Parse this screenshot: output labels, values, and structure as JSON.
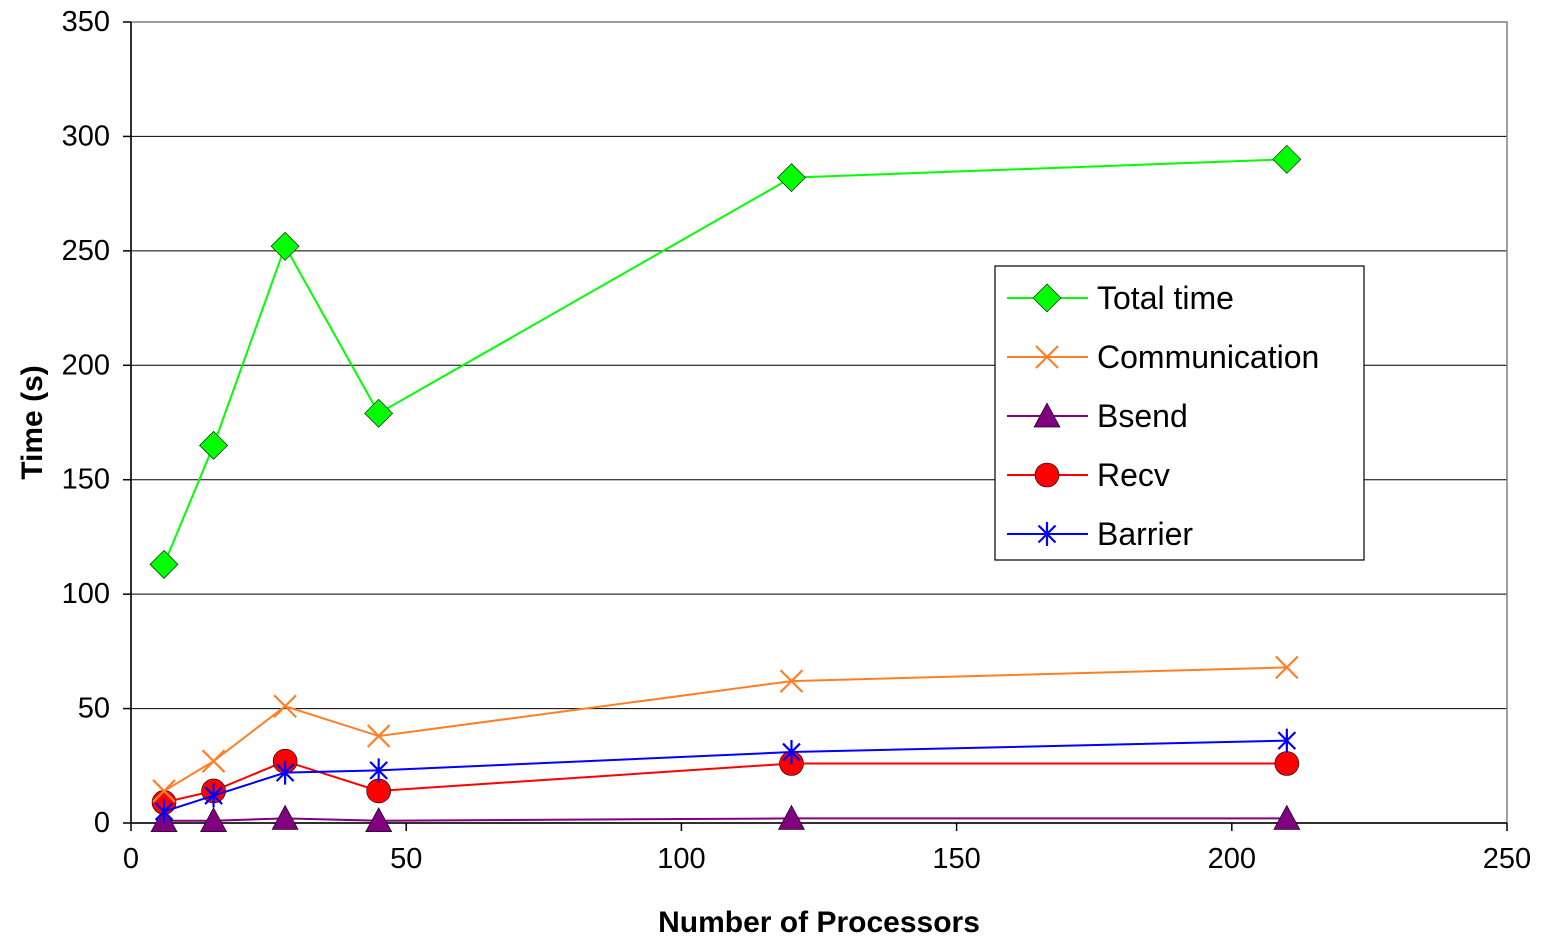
{
  "chart_data": {
    "type": "line",
    "title": "",
    "xlabel": "Number of Processors",
    "ylabel": "Time (s)",
    "xlim": [
      0,
      250
    ],
    "ylim": [
      0,
      350
    ],
    "x_ticks": [
      0,
      50,
      100,
      150,
      200,
      250
    ],
    "y_ticks": [
      0,
      50,
      100,
      150,
      200,
      250,
      300,
      350
    ],
    "x_tick_labels": [
      "0",
      "50",
      "100",
      "150",
      "200",
      "250"
    ],
    "y_tick_labels": [
      "0",
      "50",
      "100",
      "150",
      "200",
      "250",
      "300",
      "350"
    ],
    "grid": "horizontal",
    "legend_position": "center-right",
    "x": [
      6,
      15,
      28,
      45,
      120,
      210
    ],
    "series": [
      {
        "name": "Total time",
        "color": "#00FF00",
        "marker": "diamond",
        "values": [
          113,
          165,
          252,
          179,
          282,
          290
        ]
      },
      {
        "name": "Communication",
        "color": "#FF7F27",
        "marker": "x",
        "values": [
          14,
          27,
          51,
          38,
          62,
          68
        ]
      },
      {
        "name": "Bsend",
        "color": "#800080",
        "marker": "triangle",
        "values": [
          1,
          1,
          2,
          1,
          2,
          2
        ]
      },
      {
        "name": "Recv",
        "color": "#FF0000",
        "marker": "circle",
        "values": [
          9,
          14,
          27,
          14,
          26,
          26
        ]
      },
      {
        "name": "Barrier",
        "color": "#0000FF",
        "marker": "asterisk",
        "values": [
          5,
          12,
          22,
          23,
          31,
          36
        ]
      }
    ]
  }
}
